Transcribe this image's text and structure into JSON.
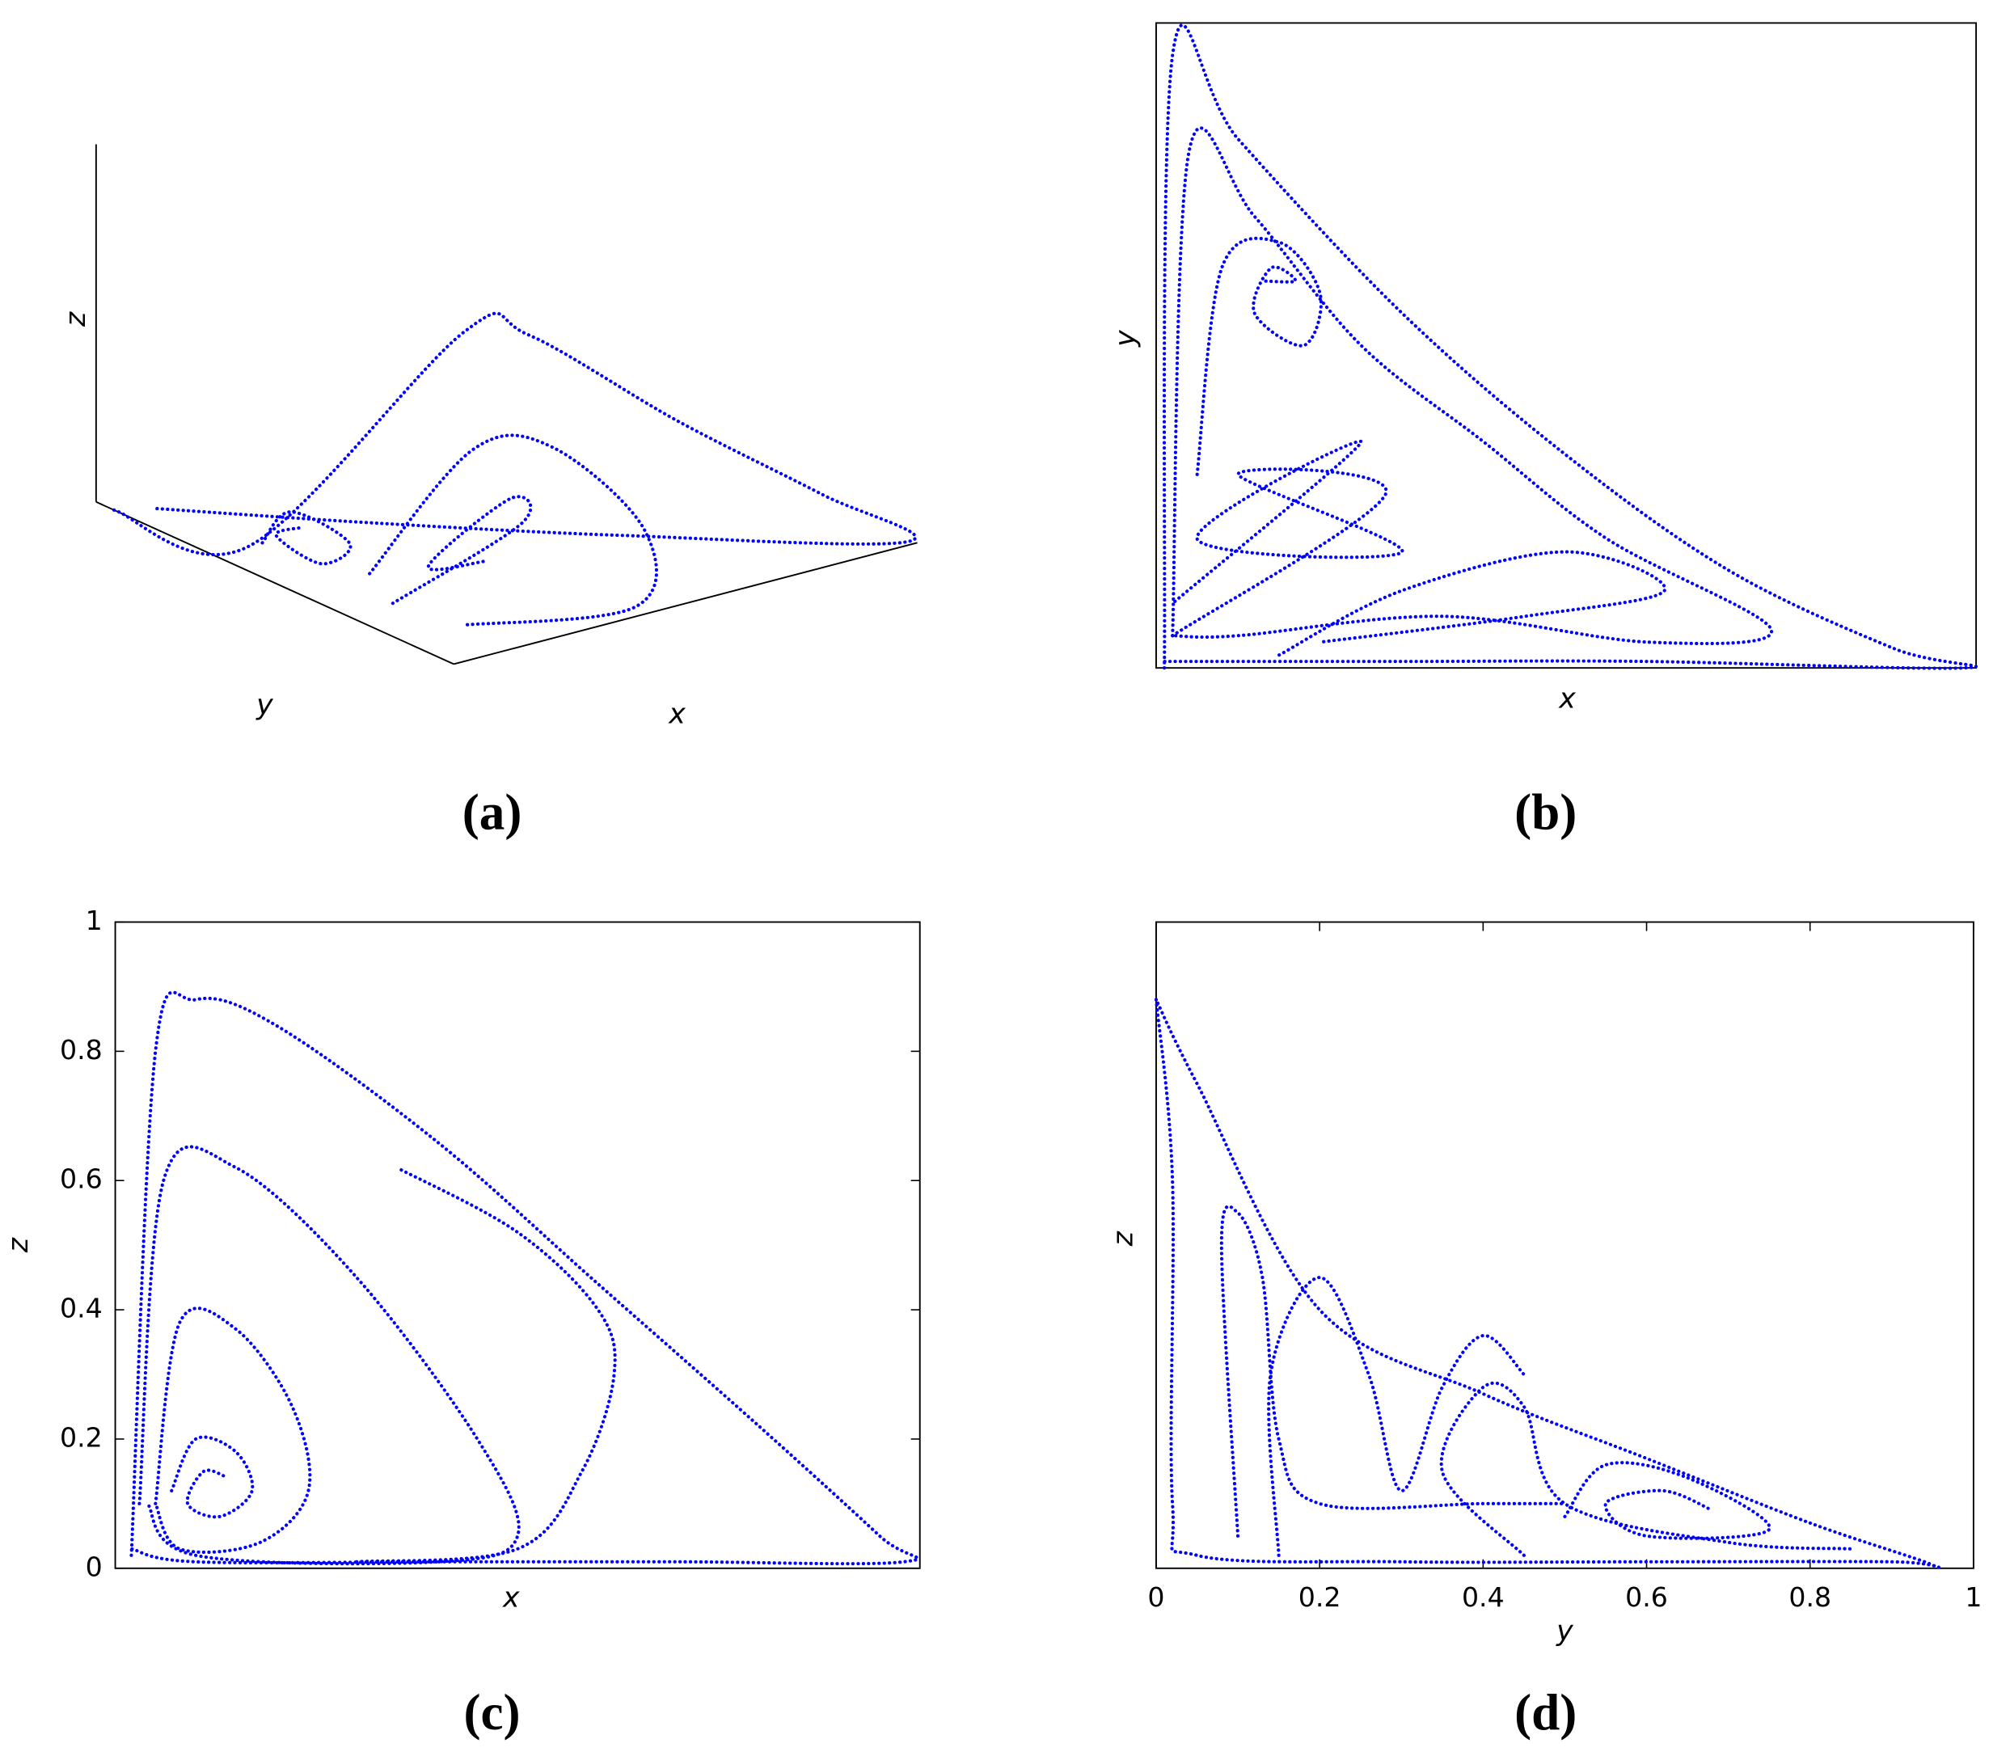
{
  "chart_data": [
    {
      "type": "line3d",
      "label": "(a)",
      "xlabel": "x",
      "ylabel": "y",
      "zlabel": "z",
      "color": "#0000ff",
      "series": [
        {
          "x": [
            0,
            0.02,
            0.1,
            0.2,
            0.5,
            0.8,
            0.98,
            0.6,
            0.3,
            0.05
          ],
          "y": [
            0.95,
            0.6,
            0.1,
            0.05,
            0.02,
            0.01,
            0,
            0.3,
            0.6,
            0.9
          ],
          "z": [
            0,
            0.05,
            0.85,
            0.83,
            0.5,
            0.2,
            0.01,
            0.02,
            0.02,
            0.01
          ]
        },
        {
          "x": [
            0.05,
            0.08,
            0.25,
            0.45,
            0.4,
            0.1
          ],
          "y": [
            0.3,
            0.05,
            0.05,
            0.05,
            0.01,
            0.1
          ],
          "z": [
            0.1,
            0.55,
            0.5,
            0.2,
            0.02,
            0.03
          ]
        },
        {
          "x": [
            0.05,
            0.15,
            0.2,
            0.1,
            0.08,
            0.15
          ],
          "y": [
            0.6,
            0.65,
            0.55,
            0.5,
            0.6,
            0.62
          ],
          "z": [
            0.05,
            0.08,
            0.02,
            0.02,
            0.06,
            0.05
          ]
        },
        {
          "x": [
            0.1,
            0.3,
            0.2,
            0.1,
            0.3
          ],
          "y": [
            0.3,
            0.2,
            0.1,
            0.2,
            0.3
          ],
          "z": [
            0,
            0.2,
            0.35,
            0.15,
            0.05
          ]
        }
      ]
    },
    {
      "type": "line",
      "label": "(b)",
      "xlabel": "x",
      "ylabel": "y",
      "color": "#0000ff",
      "xlim": [
        0,
        1
      ],
      "ylim": [
        0,
        1
      ],
      "series": [
        {
          "x": [
            0.01,
            0.02,
            0.1,
            0.3,
            0.5,
            0.7,
            0.9,
            0.985,
            0.6,
            0.3,
            0.01
          ],
          "values": [
            0,
            0.95,
            0.82,
            0.55,
            0.33,
            0.15,
            0.03,
            0,
            0.01,
            0.01,
            0.01
          ]
        },
        {
          "x": [
            0.02,
            0.04,
            0.12,
            0.25,
            0.4,
            0.55,
            0.75,
            0.6,
            0.35,
            0.1,
            0.02
          ],
          "values": [
            0.05,
            0.8,
            0.7,
            0.5,
            0.35,
            0.2,
            0.06,
            0.04,
            0.08,
            0.05,
            0.05
          ]
        },
        {
          "x": [
            0.05,
            0.08,
            0.15,
            0.2,
            0.18,
            0.12,
            0.14,
            0.17,
            0.13
          ],
          "values": [
            0.3,
            0.62,
            0.66,
            0.58,
            0.5,
            0.55,
            0.62,
            0.6,
            0.6
          ]
        },
        {
          "x": [
            0.02,
            0.28,
            0.1,
            0.3,
            0.05,
            0.25,
            0.02
          ],
          "values": [
            0.05,
            0.27,
            0.3,
            0.18,
            0.2,
            0.35,
            0.1
          ]
        },
        {
          "x": [
            0.15,
            0.3,
            0.5,
            0.62,
            0.45,
            0.2
          ],
          "values": [
            0.02,
            0.12,
            0.18,
            0.12,
            0.08,
            0.04
          ]
        }
      ]
    },
    {
      "type": "line",
      "label": "(c)",
      "xlabel": "x",
      "ylabel": "z",
      "color": "#0000ff",
      "xlim": [
        0,
        1
      ],
      "ylim": [
        0,
        1
      ],
      "yticks": [
        0,
        0.2,
        0.4,
        0.6,
        0.8,
        1
      ],
      "series": [
        {
          "x": [
            0.02,
            0.05,
            0.1,
            0.2,
            0.4,
            0.6,
            0.8,
            0.95,
            0.98,
            0.7,
            0.4,
            0.1,
            0.02
          ],
          "values": [
            0.02,
            0.8,
            0.88,
            0.84,
            0.66,
            0.44,
            0.22,
            0.05,
            0.01,
            0.01,
            0.01,
            0.01,
            0.03
          ]
        },
        {
          "x": [
            0.03,
            0.06,
            0.15,
            0.3,
            0.45,
            0.5,
            0.4,
            0.1,
            0.04
          ],
          "values": [
            0.1,
            0.6,
            0.62,
            0.45,
            0.2,
            0.05,
            0.01,
            0.02,
            0.1
          ]
        },
        {
          "x": [
            0.05,
            0.08,
            0.15,
            0.22,
            0.24,
            0.18,
            0.08,
            0.05
          ],
          "values": [
            0.1,
            0.38,
            0.37,
            0.25,
            0.12,
            0.04,
            0.03,
            0.1
          ]
        },
        {
          "x": [
            0.07,
            0.1,
            0.15,
            0.17,
            0.13,
            0.09,
            0.11,
            0.14
          ],
          "values": [
            0.12,
            0.2,
            0.18,
            0.12,
            0.08,
            0.1,
            0.15,
            0.14
          ]
        },
        {
          "x": [
            0.3,
            0.5,
            0.58,
            0.62,
            0.6,
            0.5,
            0.35
          ],
          "values": [
            0.01,
            0.03,
            0.15,
            0.3,
            0.4,
            0.52,
            0.62
          ]
        }
      ]
    },
    {
      "type": "line",
      "label": "(d)",
      "xlabel": "y",
      "ylabel": "z",
      "color": "#0000ff",
      "xlim": [
        0,
        1
      ],
      "ylim": [
        0,
        1
      ],
      "xticks": [
        0,
        0.2,
        0.4,
        0.6,
        0.8,
        1
      ],
      "series": [
        {
          "x": [
            0,
            0.02,
            0.02,
            0.05,
            0.3,
            0.6,
            0.9,
            0.95,
            0.8,
            0.6,
            0.4,
            0.2,
            0.05,
            0
          ],
          "values": [
            0.88,
            0.6,
            0.1,
            0.02,
            0.01,
            0.01,
            0.01,
            0.005,
            0.07,
            0.17,
            0.27,
            0.4,
            0.75,
            0.88
          ]
        },
        {
          "x": [
            0.45,
            0.35,
            0.4,
            0.45,
            0.5,
            0.7,
            0.85
          ],
          "values": [
            0.02,
            0.15,
            0.28,
            0.25,
            0.1,
            0.04,
            0.03
          ]
        },
        {
          "x": [
            0.5,
            0.55,
            0.65,
            0.75,
            0.6,
            0.55,
            0.62,
            0.68
          ],
          "values": [
            0.08,
            0.16,
            0.14,
            0.06,
            0.05,
            0.1,
            0.12,
            0.09
          ]
        },
        {
          "x": [
            0.15,
            0.14,
            0.2,
            0.26,
            0.3,
            0.35,
            0.4,
            0.45
          ],
          "values": [
            0.02,
            0.3,
            0.45,
            0.3,
            0.12,
            0.28,
            0.36,
            0.3
          ]
        },
        {
          "x": [
            0.1,
            0.08,
            0.1,
            0.13,
            0.15,
            0.2,
            0.4,
            0.5
          ],
          "values": [
            0.05,
            0.5,
            0.55,
            0.45,
            0.2,
            0.1,
            0.1,
            0.1
          ]
        }
      ]
    }
  ]
}
